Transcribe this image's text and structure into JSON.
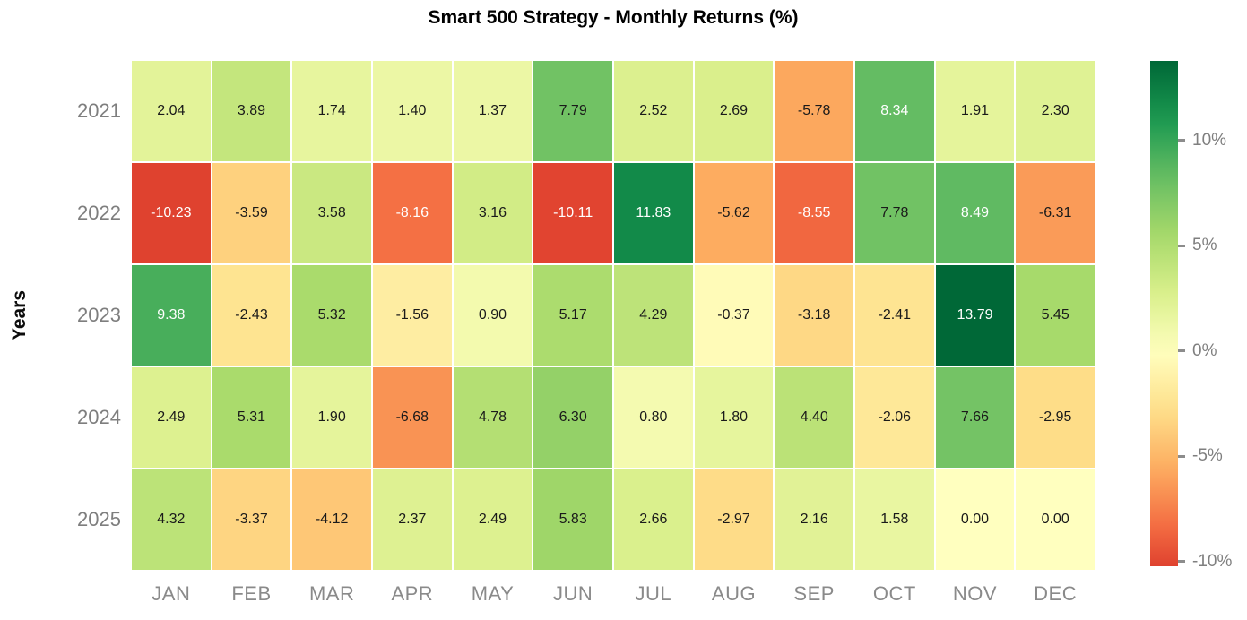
{
  "chart_data": {
    "type": "heatmap",
    "title": "Smart 500 Strategy - Monthly Returns (%)",
    "ylabel": "Years",
    "rows": [
      "2021",
      "2022",
      "2023",
      "2024",
      "2025"
    ],
    "columns": [
      "JAN",
      "FEB",
      "MAR",
      "APR",
      "MAY",
      "JUN",
      "JUL",
      "AUG",
      "SEP",
      "OCT",
      "NOV",
      "DEC"
    ],
    "values": [
      [
        2.04,
        3.89,
        1.74,
        1.4,
        1.37,
        7.79,
        2.52,
        2.69,
        -5.78,
        8.34,
        1.91,
        2.3
      ],
      [
        -10.23,
        -3.59,
        3.58,
        -8.16,
        3.16,
        -10.11,
        11.83,
        -5.62,
        -8.55,
        7.78,
        8.49,
        -6.31
      ],
      [
        9.38,
        -2.43,
        5.32,
        -1.56,
        0.9,
        5.17,
        4.29,
        -0.37,
        -3.18,
        -2.41,
        13.79,
        5.45
      ],
      [
        2.49,
        5.31,
        1.9,
        -6.68,
        4.78,
        6.3,
        0.8,
        1.8,
        4.4,
        -2.06,
        7.66,
        -2.95
      ],
      [
        4.32,
        -3.37,
        -4.12,
        2.37,
        2.49,
        5.83,
        2.66,
        -2.97,
        2.16,
        1.58,
        0.0,
        0.0
      ]
    ],
    "value_decimals": 2,
    "colormap": {
      "name": "RdYlGn",
      "stops": [
        "#a50026",
        "#d73027",
        "#f46d43",
        "#fdae61",
        "#fee08b",
        "#ffffbf",
        "#d9ef8b",
        "#a6d96a",
        "#66bd63",
        "#1a9850",
        "#006837"
      ],
      "center": 0,
      "vmin": -10.23,
      "vmax": 13.79
    },
    "colorbar": {
      "ticks": [
        {
          "value": 10,
          "label": "10%"
        },
        {
          "value": 5,
          "label": "5%"
        },
        {
          "value": 0,
          "label": "0%"
        },
        {
          "value": -5,
          "label": "-5%"
        },
        {
          "value": -10,
          "label": "-10%"
        }
      ]
    },
    "style": {
      "white_text_abs_threshold": 8,
      "dark_text_color": "#1a1a1a",
      "white_text_color": "#ffffff",
      "grid_line_color": "#ffffff",
      "axis_tick_color": "#7e7e7e",
      "legend_position": "right"
    }
  }
}
